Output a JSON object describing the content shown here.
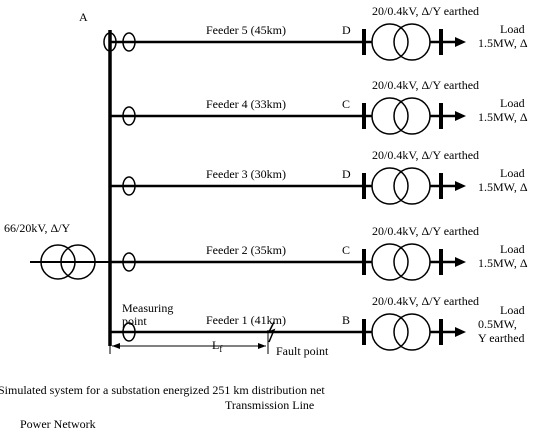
{
  "node_a": "A",
  "source": "66/20kV, Δ/Y",
  "feeders": [
    {
      "label": "Feeder 5 (45km)",
      "node": "D",
      "transformer": "20/0.4kV, Δ/Y earthed",
      "load": [
        "Load",
        "1.5MW, Δ"
      ]
    },
    {
      "label": "Feeder 4 (33km)",
      "node": "C",
      "transformer": "20/0.4kV, Δ/Y earthed",
      "load": [
        "Load",
        "1.5MW, Δ"
      ]
    },
    {
      "label": "Feeder 3 (30km)",
      "node": "D",
      "transformer": "20/0.4kV, Δ/Y earthed",
      "load": [
        "Load",
        "1.5MW, Δ"
      ]
    },
    {
      "label": "Feeder 2 (35km)",
      "node": "C",
      "transformer": "20/0.4kV, Δ/Y earthed",
      "load": [
        "Load",
        "1.5MW, Δ"
      ]
    },
    {
      "label": "Feeder 1 (41km)",
      "node": "B",
      "transformer": "20/0.4kV, Δ/Y earthed",
      "load": [
        "Load",
        "0.5MW,",
        "Y earthed"
      ]
    }
  ],
  "measuring_point": [
    "Measuring",
    "point"
  ],
  "distance": {
    "symbol": "L",
    "subscript": "f"
  },
  "fault_point": "Fault point",
  "caption": "Simulated system for a substation energized 251 km distribution net",
  "transmission_line": "Transmission Line",
  "power_network": "Power Network"
}
